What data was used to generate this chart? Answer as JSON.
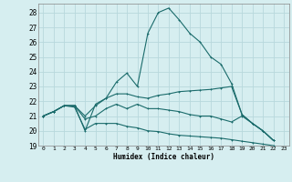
{
  "xlabel": "Humidex (Indice chaleur)",
  "bg_color": "#d6eef0",
  "grid_color": "#b8d8dc",
  "line_color": "#1a6b6b",
  "xlim": [
    -0.5,
    23.5
  ],
  "ylim": [
    19,
    28.6
  ],
  "yticks": [
    19,
    20,
    21,
    22,
    23,
    24,
    25,
    26,
    27,
    28
  ],
  "xticks": [
    0,
    1,
    2,
    3,
    4,
    5,
    6,
    7,
    8,
    9,
    10,
    11,
    12,
    13,
    14,
    15,
    16,
    17,
    18,
    19,
    20,
    21,
    22,
    23
  ],
  "line1_x": [
    0,
    1,
    2,
    3,
    4,
    5,
    6,
    7,
    8,
    9,
    10,
    11,
    12,
    13,
    14,
    15,
    16,
    17,
    18,
    19,
    20,
    21,
    22
  ],
  "line1_y": [
    21.0,
    21.3,
    21.7,
    21.7,
    20.0,
    21.8,
    22.2,
    23.3,
    23.9,
    23.0,
    26.6,
    28.0,
    28.3,
    27.5,
    26.6,
    26.0,
    25.0,
    24.5,
    23.2,
    21.1,
    20.5,
    20.0,
    19.35
  ],
  "line2_x": [
    0,
    1,
    2,
    3,
    4,
    5,
    6,
    7,
    8,
    9,
    10,
    11,
    12,
    13,
    14,
    15,
    16,
    17,
    18,
    19,
    20,
    21,
    22
  ],
  "line2_y": [
    21.0,
    21.3,
    21.7,
    21.7,
    21.0,
    21.7,
    22.2,
    22.5,
    22.5,
    22.3,
    22.2,
    22.4,
    22.5,
    22.65,
    22.7,
    22.75,
    22.8,
    22.9,
    23.0,
    21.1,
    20.5,
    20.0,
    19.35
  ],
  "line3_x": [
    0,
    1,
    2,
    3,
    4,
    5,
    6,
    7,
    8,
    9,
    10,
    11,
    12,
    13,
    14,
    15,
    16,
    17,
    18,
    19,
    20,
    21,
    22
  ],
  "line3_y": [
    21.0,
    21.3,
    21.7,
    21.7,
    20.8,
    21.0,
    21.5,
    21.8,
    21.5,
    21.8,
    21.5,
    21.5,
    21.4,
    21.3,
    21.1,
    21.0,
    21.0,
    20.8,
    20.6,
    21.0,
    20.5,
    20.0,
    19.35
  ],
  "line4_x": [
    0,
    1,
    2,
    3,
    4,
    5,
    6,
    7,
    8,
    9,
    10,
    11,
    12,
    13,
    14,
    15,
    16,
    17,
    18,
    19,
    20,
    21,
    22
  ],
  "line4_y": [
    21.0,
    21.3,
    21.7,
    21.6,
    20.1,
    20.5,
    20.5,
    20.5,
    20.3,
    20.2,
    20.0,
    19.95,
    19.8,
    19.7,
    19.65,
    19.6,
    19.55,
    19.5,
    19.4,
    19.3,
    19.2,
    19.1,
    19.0
  ]
}
